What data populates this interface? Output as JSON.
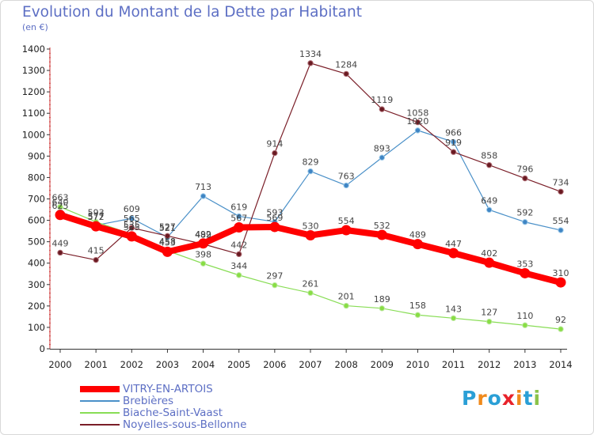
{
  "title": "Evolution du Montant de la Dette par Habitant",
  "unit_label": "(en €)",
  "logo_text": "Proxiti",
  "chart_data": {
    "type": "line",
    "title": "Evolution du Montant de la Dette par Habitant",
    "subtitle": "(en €)",
    "xlabel": "",
    "ylabel": "",
    "ylim": [
      0,
      1400
    ],
    "yticks": [
      0,
      100,
      200,
      300,
      400,
      500,
      600,
      700,
      800,
      900,
      1000,
      1100,
      1200,
      1300,
      1400
    ],
    "grid": false,
    "legend_position": "bottom-left",
    "x": [
      "2000",
      "2001",
      "2002",
      "2003",
      "2004",
      "2005",
      "2006",
      "2007",
      "2008",
      "2009",
      "2010",
      "2011",
      "2012",
      "2013",
      "2014"
    ],
    "series": [
      {
        "name": "VITRY-EN-ARTOIS",
        "color": "#ff0000",
        "values": [
          625,
          572,
          525,
          453,
          492,
          567,
          569,
          530,
          554,
          532,
          489,
          447,
          402,
          353,
          310
        ]
      },
      {
        "name": "Brebières",
        "color": "#4a90c8",
        "values": [
          640,
          577,
          609,
          521,
          713,
          619,
          593,
          829,
          763,
          893,
          1020,
          966,
          649,
          592,
          554
        ]
      },
      {
        "name": "Biache-Saint-Vaast",
        "color": "#88dd55",
        "values": [
          663,
          593,
          535,
          458,
          398,
          344,
          297,
          261,
          201,
          189,
          158,
          143,
          127,
          110,
          92
        ]
      },
      {
        "name": "Noyelles-sous-Bellonne",
        "color": "#7a1e28",
        "values": [
          449,
          415,
          565,
          527,
          489,
          442,
          914,
          1334,
          1284,
          1119,
          1058,
          919,
          858,
          796,
          734
        ]
      }
    ]
  }
}
